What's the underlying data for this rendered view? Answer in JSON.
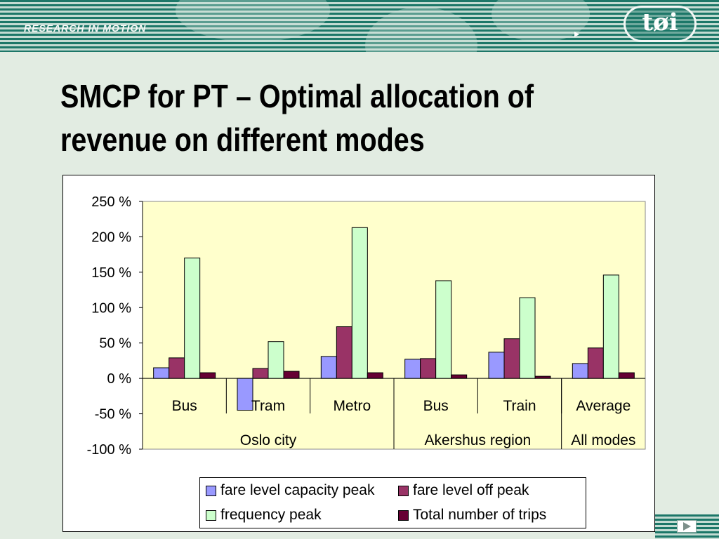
{
  "header": {
    "brand_text": "RESEARCH IN MOTION",
    "logo_text": "tøi"
  },
  "slide": {
    "title": "SMCP for PT – Optimal allocation of revenue on different modes"
  },
  "colors": {
    "plot_background": "#ffffcc",
    "series": [
      "#9999ff",
      "#993366",
      "#ccffcc",
      "#660033"
    ]
  },
  "chart_data": {
    "type": "bar",
    "categories": [
      "Bus",
      "Tram",
      "Metro",
      "Bus",
      "Train",
      "Average"
    ],
    "groups": [
      {
        "label": "Oslo city",
        "categories": [
          "Bus",
          "Tram",
          "Metro"
        ]
      },
      {
        "label": "Akershus region",
        "categories": [
          "Bus",
          "Train"
        ]
      },
      {
        "label": "All modes",
        "categories": [
          "Average"
        ]
      }
    ],
    "series": [
      {
        "name": "fare level capacity peak",
        "values": [
          15,
          -45,
          31,
          27,
          37,
          21
        ]
      },
      {
        "name": "fare level off peak",
        "values": [
          29,
          14,
          73,
          28,
          56,
          43
        ]
      },
      {
        "name": "frequency peak",
        "values": [
          170,
          52,
          213,
          138,
          114,
          146
        ]
      },
      {
        "name": "Total number of trips",
        "values": [
          8,
          10,
          8,
          5,
          3,
          8
        ]
      }
    ],
    "y_ticks": [
      "250 %",
      "200 %",
      "150 %",
      "100 %",
      "50 %",
      "0 %",
      "-50 %",
      "-100 %"
    ],
    "ylim": [
      -100,
      250
    ],
    "grid": false,
    "legend_position": "bottom"
  }
}
